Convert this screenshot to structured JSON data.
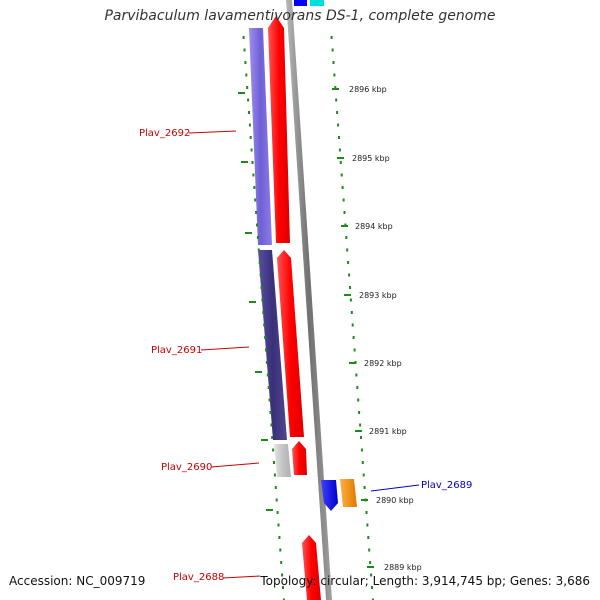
{
  "map": {
    "title": "Parvibaculum lavamentivorans DS-1, complete genome",
    "scale_labels": [
      "2896 kbp",
      "2895 kbp",
      "2894 kbp",
      "2893 kbp",
      "2892 kbp",
      "2891 kbp",
      "2890 kbp",
      "2889 kbp"
    ],
    "gene_labels": {
      "plav2692": "Plav_2692",
      "plav2691": "Plav_2691",
      "plav2690": "Plav_2690",
      "plav2689": "Plav_2689",
      "plav2688": "Plav_2688"
    }
  },
  "footer": {
    "accession": "Accession: NC_009719",
    "summary": "Topology: circular; Length: 3,914,745 bp; Genes: 3,686"
  },
  "colors": {
    "light_purple": "#7b68d8",
    "dark_purple": "#4a3f8c",
    "gray_block": "#c8c8c8",
    "red_feature": "#ff0000",
    "blue_feature": "#0000ff",
    "orange_feature": "#ff9900",
    "cyan_feature": "#00dddd",
    "backbone": "#8c8c8c",
    "tick_green": "#1e8a1e",
    "label_red": "#cc0000",
    "label_blue": "#0000cc"
  }
}
